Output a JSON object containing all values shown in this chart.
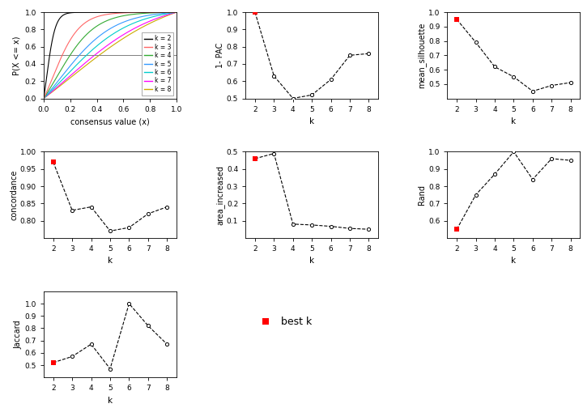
{
  "k_values": [
    2,
    3,
    4,
    5,
    6,
    7,
    8
  ],
  "one_minus_pac": [
    1.0,
    0.63,
    0.5,
    0.52,
    0.61,
    0.75,
    0.76
  ],
  "mean_silhouette": [
    0.95,
    0.79,
    0.62,
    0.55,
    0.45,
    0.49,
    0.51
  ],
  "concordance": [
    0.97,
    0.83,
    0.84,
    0.77,
    0.78,
    0.82,
    0.84
  ],
  "area_increased": [
    0.46,
    0.49,
    0.08,
    0.075,
    0.067,
    0.055,
    0.05
  ],
  "rand": [
    0.55,
    0.75,
    0.87,
    1.0,
    0.84,
    0.96,
    0.95
  ],
  "jaccard": [
    0.52,
    0.57,
    0.67,
    0.47,
    1.0,
    0.82,
    0.67
  ],
  "best_k_idx_pac": 0,
  "best_k_idx_sil": 0,
  "best_k_idx_conc": 0,
  "best_k_idx_area": 0,
  "best_k_idx_rand": 0,
  "best_k_idx_jacc": 0,
  "cdf_colors": [
    "#000000",
    "#FF6666",
    "#33AA33",
    "#3399FF",
    "#00CCCC",
    "#FF00FF",
    "#CCAA00"
  ],
  "cdf_labels": [
    "k = 2",
    "k = 3",
    "k = 4",
    "k = 5",
    "k = 6",
    "k = 7",
    "k = 8"
  ],
  "red_color": "#FF0000"
}
